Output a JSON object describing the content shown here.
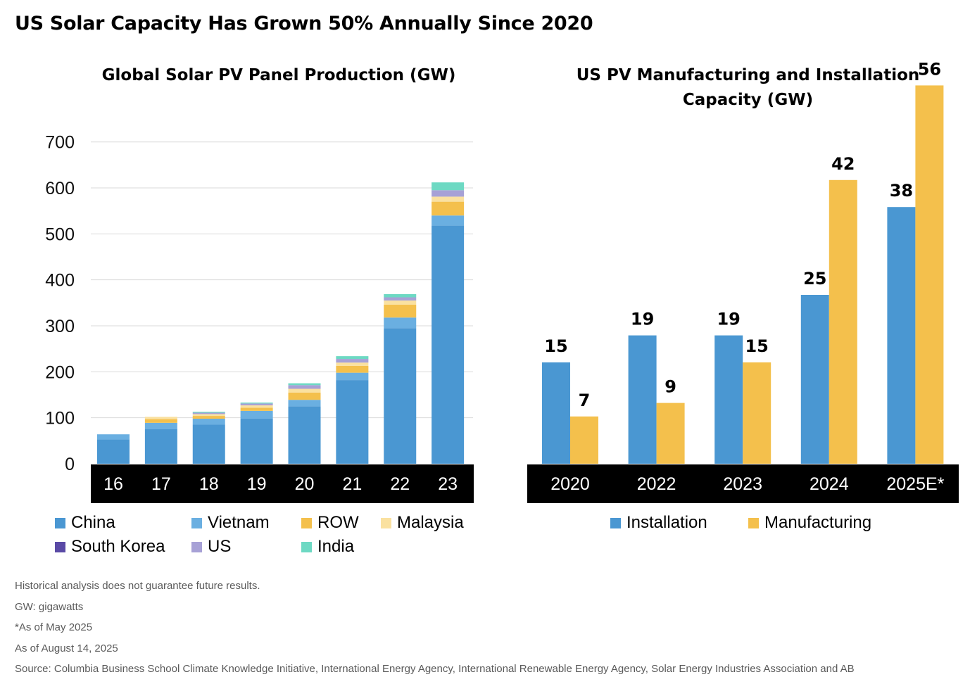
{
  "title": "US Solar Capacity Has Grown 50% Annually Since 2020",
  "left_title": "Global Solar PV Panel Production (GW)",
  "right_title_line1": "US PV Manufacturing and Installation",
  "right_title_line2": "Capacity (GW)",
  "colors": {
    "China": "#4a97d2",
    "Vietnam": "#6aafe1",
    "ROW": "#f4c04c",
    "Malaysia": "#fae1a0",
    "South Korea": "#5a4aa6",
    "US": "#a7a1d6",
    "India": "#6dd9c3",
    "Installation": "#4a97d2",
    "Manufacturing": "#f4c04c"
  },
  "chart_data": [
    {
      "type": "bar",
      "stacked": true,
      "title": "Global Solar PV Panel Production (GW)",
      "categories": [
        "16",
        "17",
        "18",
        "19",
        "20",
        "21",
        "22",
        "23"
      ],
      "ylim": [
        0,
        700
      ],
      "yticks": [
        0,
        100,
        200,
        300,
        400,
        500,
        600,
        700
      ],
      "grid": true,
      "legend_position": "bottom",
      "series": [
        {
          "name": "China",
          "values": [
            53,
            75,
            85,
            98,
            125,
            182,
            295,
            518
          ]
        },
        {
          "name": "Vietnam",
          "values": [
            11,
            14,
            13,
            17,
            14,
            16,
            23,
            22
          ]
        },
        {
          "name": "ROW",
          "values": [
            0,
            8,
            6,
            7,
            16,
            15,
            28,
            30
          ]
        },
        {
          "name": "Malaysia",
          "values": [
            0,
            5,
            4,
            5,
            8,
            7,
            9,
            11
          ]
        },
        {
          "name": "South Korea",
          "values": [
            0,
            0,
            0,
            0,
            0,
            0,
            0,
            0
          ]
        },
        {
          "name": "US",
          "values": [
            0,
            0,
            3,
            4,
            8,
            8,
            7,
            14
          ]
        },
        {
          "name": "India",
          "values": [
            0,
            0,
            2,
            2,
            4,
            6,
            7,
            17
          ]
        }
      ]
    },
    {
      "type": "bar",
      "title": "US PV Manufacturing and Installation Capacity (GW)",
      "categories": [
        "2020",
        "2022",
        "2023",
        "2024",
        "2025E*"
      ],
      "ylim": [
        0,
        60
      ],
      "legend_position": "bottom",
      "series": [
        {
          "name": "Installation",
          "values": [
            15,
            19,
            19,
            25,
            38
          ]
        },
        {
          "name": "Manufacturing",
          "values": [
            7,
            9,
            15,
            42,
            56
          ]
        }
      ]
    }
  ],
  "notes": [
    "Historical analysis does not guarantee future results.",
    "GW: gigawatts",
    "*As of May 2025",
    "As of August 14, 2025",
    "Source: Columbia Business School Climate Knowledge Initiative, International Energy Agency, International Renewable Energy Agency, Solar Energy Industries Association and AB"
  ]
}
